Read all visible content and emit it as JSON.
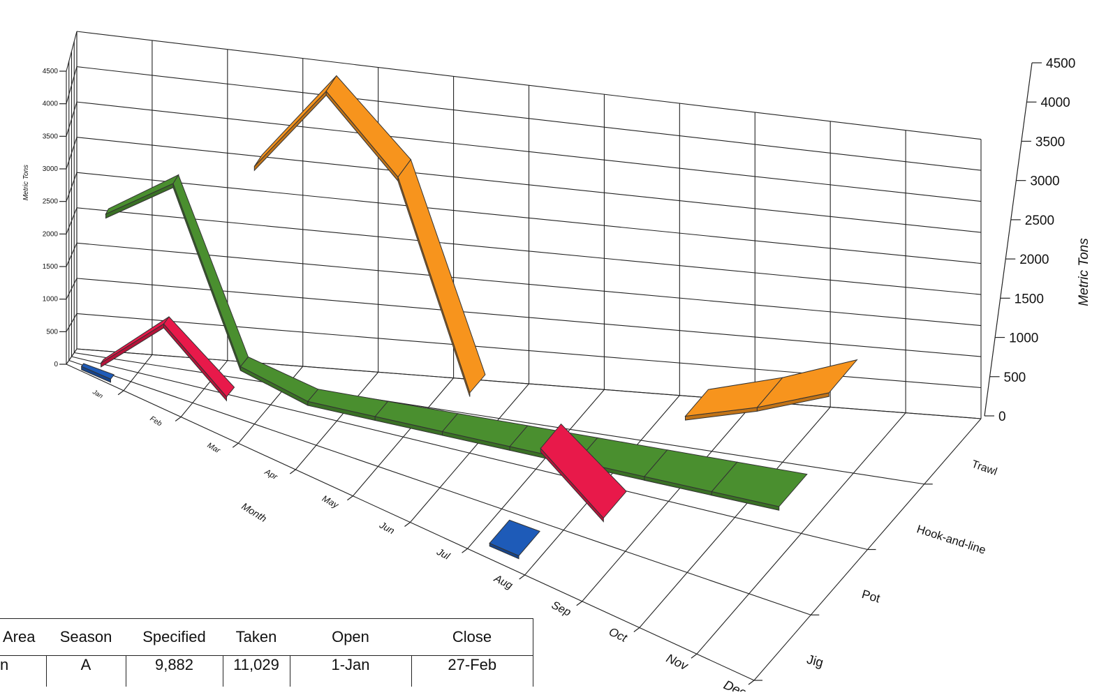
{
  "chart_data": {
    "type": "line",
    "style": "3d-ribbon",
    "title": "",
    "xlabel": "Month",
    "ylabel": "Metric Tons",
    "zlabel": "",
    "categories": [
      "Jan",
      "Feb",
      "Mar",
      "Apr",
      "May",
      "Jun",
      "Jul",
      "Aug",
      "Sep",
      "Oct",
      "Nov",
      "Dec"
    ],
    "gear_types": [
      "Trawl",
      "Hook-and-line",
      "Pot",
      "Jig"
    ],
    "y_ticks": [
      0,
      500,
      1000,
      1500,
      2000,
      2500,
      3000,
      3500,
      4000,
      4500
    ],
    "ylim": [
      0,
      4500
    ],
    "grid": true,
    "series": [
      {
        "name": "Trawl",
        "color": "#f7941d",
        "values": [
          null,
          null,
          3100,
          4400,
          3300,
          200,
          null,
          null,
          300,
          600,
          1000,
          null
        ]
      },
      {
        "name": "Hook-and-line",
        "color": "#4a8f2f",
        "values": [
          2200,
          2900,
          400,
          100,
          100,
          100,
          100,
          100,
          100,
          100,
          100,
          null
        ]
      },
      {
        "name": "Pot",
        "color": "#e8194a",
        "values": [
          100,
          1000,
          200,
          null,
          null,
          null,
          null,
          1000,
          200,
          null,
          null,
          null
        ]
      },
      {
        "name": "Jig",
        "color": "#1e5bb8",
        "values": [
          50,
          null,
          null,
          null,
          null,
          null,
          null,
          50,
          null,
          null,
          null,
          null
        ]
      }
    ]
  },
  "table": {
    "headers": [
      "Area",
      "Season",
      "Specified",
      "Taken",
      "Open",
      "Close"
    ],
    "rows": [
      [
        "n",
        "A",
        "9,882",
        "11,029",
        "1-Jan",
        "27-Feb"
      ]
    ]
  }
}
